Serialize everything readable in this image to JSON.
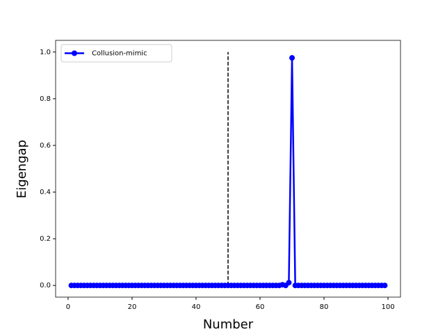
{
  "chart_data": {
    "type": "line",
    "x_label": "Number",
    "y_label": "Eigengap",
    "x": [
      1,
      2,
      3,
      4,
      5,
      6,
      7,
      8,
      9,
      10,
      11,
      12,
      13,
      14,
      15,
      16,
      17,
      18,
      19,
      20,
      21,
      22,
      23,
      24,
      25,
      26,
      27,
      28,
      29,
      30,
      31,
      32,
      33,
      34,
      35,
      36,
      37,
      38,
      39,
      40,
      41,
      42,
      43,
      44,
      45,
      46,
      47,
      48,
      49,
      50,
      51,
      52,
      53,
      54,
      55,
      56,
      57,
      58,
      59,
      60,
      61,
      62,
      63,
      64,
      65,
      66,
      67,
      68,
      69,
      70,
      71,
      72,
      73,
      74,
      75,
      76,
      77,
      78,
      79,
      80,
      81,
      82,
      83,
      84,
      85,
      86,
      87,
      88,
      89,
      90,
      91,
      92,
      93,
      94,
      95,
      96,
      97,
      98,
      99
    ],
    "series": [
      {
        "name": "Collusion-mimic",
        "color": "#0000ff",
        "values": [
          0,
          0,
          0,
          0,
          0,
          0,
          0,
          0,
          0,
          0,
          0,
          0,
          0,
          0,
          0,
          0,
          0,
          0,
          0,
          0,
          0,
          0,
          0,
          0,
          0,
          0,
          0,
          0,
          0,
          0,
          0,
          0,
          0,
          0,
          0,
          0,
          0,
          0,
          0,
          0,
          0,
          0,
          0,
          0,
          0,
          0,
          0,
          0,
          0,
          0,
          0,
          0,
          0,
          0,
          0,
          0,
          0,
          0,
          0,
          0,
          0,
          0,
          0,
          0,
          0,
          0,
          0.003,
          0,
          0.012,
          0.975,
          0,
          0,
          0,
          0,
          0,
          0,
          0,
          0,
          0,
          0,
          0,
          0,
          0,
          0,
          0,
          0,
          0,
          0,
          0,
          0,
          0,
          0,
          0,
          0,
          0,
          0,
          0,
          0,
          0
        ]
      }
    ],
    "vline": {
      "x": 50,
      "ymin": 0,
      "ymax": 1,
      "color": "#000000"
    },
    "xlim": [
      -3.9,
      103.9
    ],
    "ylim": [
      -0.05,
      1.05
    ],
    "xticks": [
      0,
      20,
      40,
      60,
      80,
      100
    ],
    "yticks": [
      {
        "value": 0,
        "label": "0.0"
      },
      {
        "value": 0.2,
        "label": "0.2"
      },
      {
        "value": 0.4,
        "label": "0.4"
      },
      {
        "value": 0.6,
        "label": "0.6"
      },
      {
        "value": 0.8,
        "label": "0.8"
      },
      {
        "value": 1,
        "label": "1.0"
      }
    ],
    "legend": "upper left"
  }
}
